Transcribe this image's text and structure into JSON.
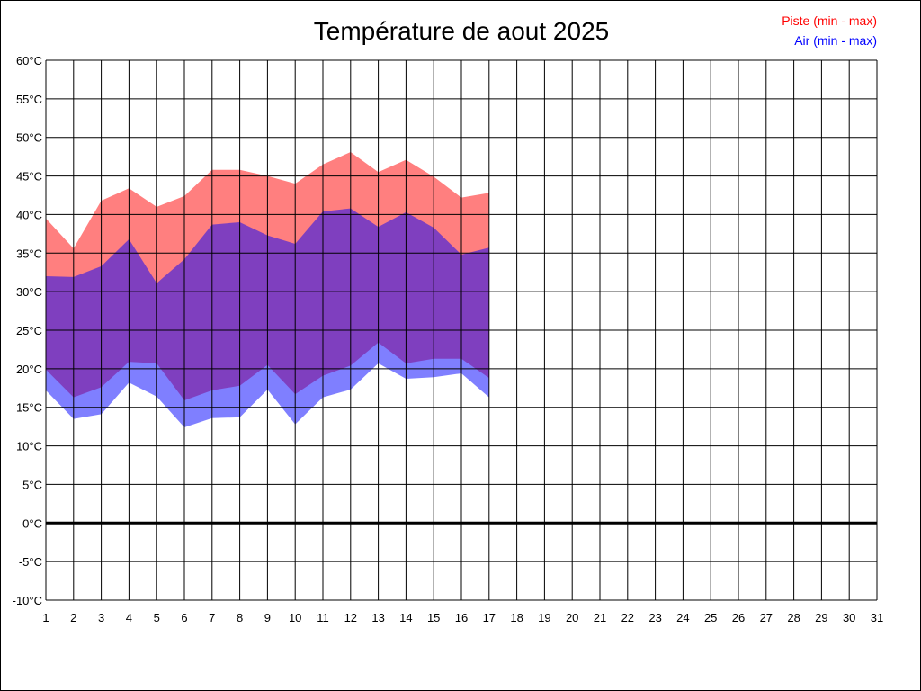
{
  "chart_data": {
    "type": "area",
    "title": "Température de aout 2025",
    "xlabel": "",
    "ylabel": "",
    "unit": "°C",
    "x_range": [
      1,
      31
    ],
    "ylim": [
      -10,
      60
    ],
    "y_tick_step": 5,
    "x_ticks": [
      1,
      2,
      3,
      4,
      5,
      6,
      7,
      8,
      9,
      10,
      11,
      12,
      13,
      14,
      15,
      16,
      17,
      18,
      19,
      20,
      21,
      22,
      23,
      24,
      25,
      26,
      27,
      28,
      29,
      30,
      31
    ],
    "grid": true,
    "legend_position": "top-right",
    "days": [
      1,
      2,
      3,
      4,
      5,
      6,
      7,
      8,
      9,
      10,
      11,
      12,
      13,
      14,
      15,
      16,
      17
    ],
    "series": [
      {
        "name": "Piste (min - max)",
        "color": "#ff0000",
        "fill": "#ff8080",
        "min": [
          19.9,
          16.3,
          17.6,
          20.9,
          20.7,
          15.9,
          17.2,
          17.8,
          20.5,
          16.7,
          19.1,
          20.4,
          23.4,
          20.7,
          21.3,
          21.3,
          18.8
        ],
        "max": [
          39.5,
          35.6,
          41.8,
          43.4,
          41.0,
          42.4,
          45.8,
          45.8,
          45.0,
          44.0,
          46.5,
          48.1,
          45.5,
          47.1,
          44.9,
          42.2,
          42.8
        ]
      },
      {
        "name": "Air (min - max)",
        "color": "#0000ff",
        "fill": "#8080ff",
        "min": [
          17.2,
          13.5,
          14.1,
          18.2,
          16.4,
          12.4,
          13.6,
          13.7,
          17.3,
          12.8,
          16.3,
          17.3,
          20.7,
          18.7,
          18.9,
          19.4,
          16.3
        ],
        "max": [
          32.0,
          31.9,
          33.3,
          36.8,
          31.1,
          34.2,
          38.7,
          39.0,
          37.3,
          36.2,
          40.4,
          40.8,
          38.4,
          40.3,
          38.3,
          34.8,
          35.7
        ]
      }
    ]
  }
}
